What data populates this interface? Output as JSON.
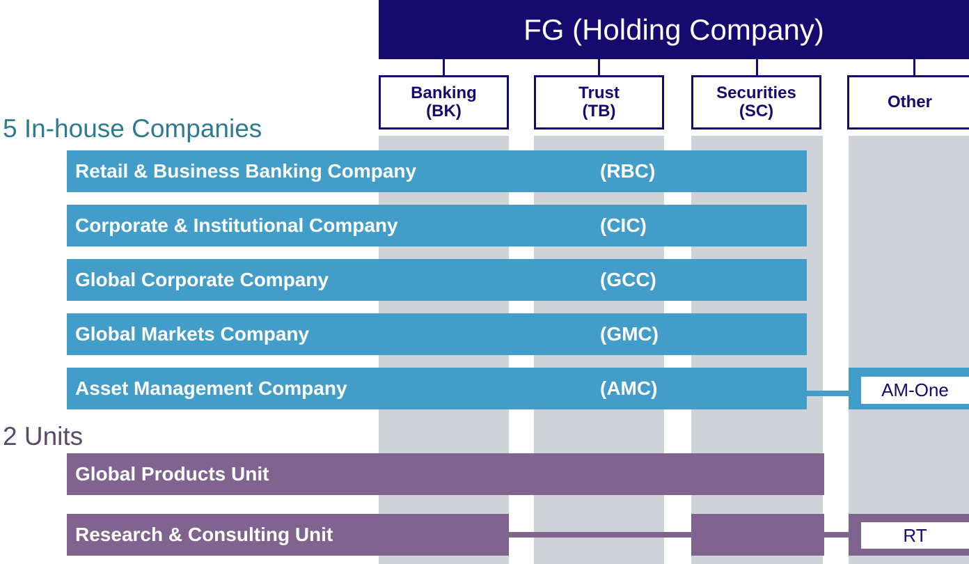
{
  "header": {
    "title": "FG (Holding Company)"
  },
  "columns": [
    {
      "name": "Banking",
      "code": "(BK)"
    },
    {
      "name": "Trust",
      "code": "(TB)"
    },
    {
      "name": "Securities",
      "code": "(SC)"
    },
    {
      "name": "Other"
    }
  ],
  "companies_heading": "5 In-house Companies",
  "companies": [
    {
      "name": "Retail & Business Banking Company",
      "code": "(RBC)"
    },
    {
      "name": "Corporate & Institutional Company",
      "code": "(CIC)"
    },
    {
      "name": "Global Corporate Company",
      "code": "(GCC)"
    },
    {
      "name": "Global Markets Company",
      "code": "(GMC)"
    },
    {
      "name": "Asset Management Company",
      "code": "(AMC)"
    }
  ],
  "units_heading": "2 Units",
  "units": [
    {
      "name": "Global Products Unit"
    },
    {
      "name": "Research & Consulting Unit"
    }
  ],
  "affiliates": {
    "asset_management": "AM-One",
    "research": "RT"
  }
}
